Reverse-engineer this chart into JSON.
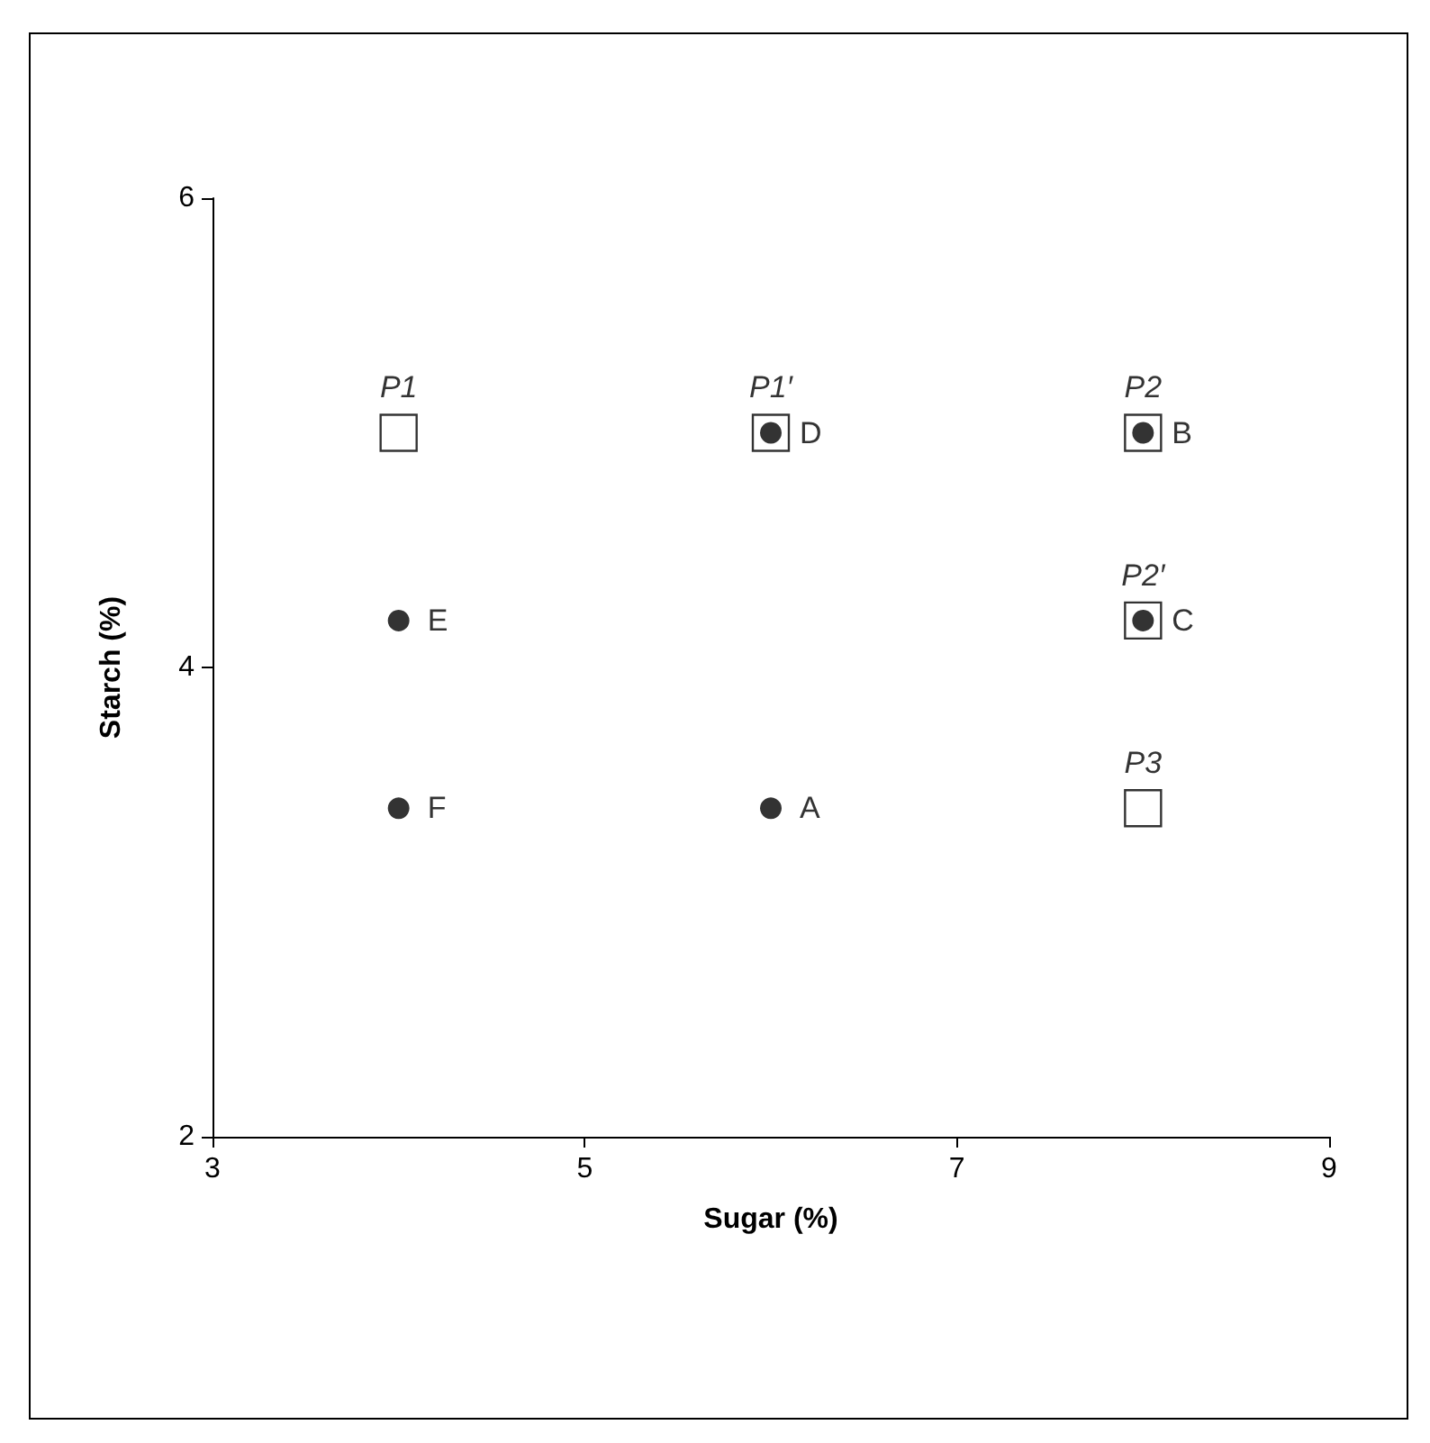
{
  "chart_data": {
    "type": "scatter",
    "xlabel": "Sugar (%)",
    "ylabel": "Starch (%)",
    "xlim": [
      3,
      9
    ],
    "xticks": [
      3,
      5,
      7,
      9
    ],
    "ylim": [
      2,
      6
    ],
    "yticks": [
      2,
      4,
      6
    ],
    "series": [
      {
        "marker": "square",
        "color": "#000000",
        "x": [
          4,
          6,
          8,
          8,
          8
        ],
        "values": [
          5,
          5,
          5,
          4.2,
          3.4
        ],
        "value_labels": [
          "P1",
          "P1′",
          "P2",
          "P2′",
          "P3"
        ]
      },
      {
        "marker": "circle",
        "color": "#000000",
        "x": [
          6,
          8,
          8,
          6,
          4,
          4
        ],
        "values": [
          3.4,
          5,
          4.2,
          5,
          4.2,
          3.4
        ],
        "value_labels": [
          "A",
          "B",
          "C",
          "D",
          "E",
          "F"
        ]
      }
    ]
  }
}
